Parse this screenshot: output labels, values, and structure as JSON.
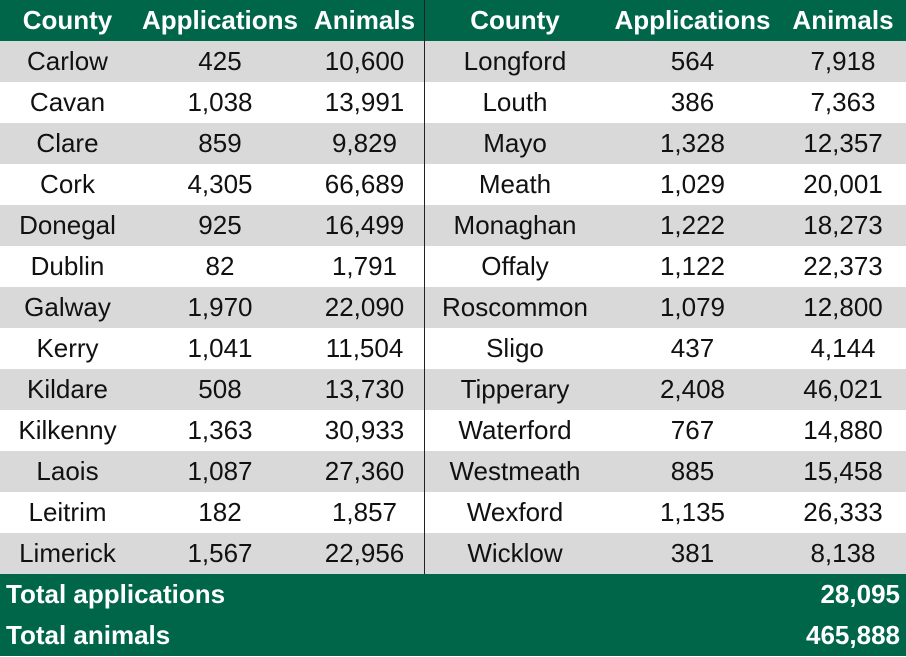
{
  "headers": [
    "County",
    "Applications",
    "Animals",
    "County",
    "Applications",
    "Animals"
  ],
  "colors": {
    "header_bg": "#00664a",
    "alt_row": "#d9d9d9"
  },
  "rows": [
    {
      "left": [
        "Carlow",
        "425",
        "10,600"
      ],
      "right": [
        "Longford",
        "564",
        "7,918"
      ]
    },
    {
      "left": [
        "Cavan",
        "1,038",
        "13,991"
      ],
      "right": [
        "Louth",
        "386",
        "7,363"
      ]
    },
    {
      "left": [
        "Clare",
        "859",
        "9,829"
      ],
      "right": [
        "Mayo",
        "1,328",
        "12,357"
      ]
    },
    {
      "left": [
        "Cork",
        "4,305",
        "66,689"
      ],
      "right": [
        "Meath",
        "1,029",
        "20,001"
      ]
    },
    {
      "left": [
        "Donegal",
        "925",
        "16,499"
      ],
      "right": [
        "Monaghan",
        "1,222",
        "18,273"
      ]
    },
    {
      "left": [
        "Dublin",
        "82",
        "1,791"
      ],
      "right": [
        "Offaly",
        "1,122",
        "22,373"
      ]
    },
    {
      "left": [
        "Galway",
        "1,970",
        "22,090"
      ],
      "right": [
        "Roscommon",
        "1,079",
        "12,800"
      ]
    },
    {
      "left": [
        "Kerry",
        "1,041",
        "11,504"
      ],
      "right": [
        "Sligo",
        "437",
        "4,144"
      ]
    },
    {
      "left": [
        "Kildare",
        "508",
        "13,730"
      ],
      "right": [
        "Tipperary",
        "2,408",
        "46,021"
      ]
    },
    {
      "left": [
        "Kilkenny",
        "1,363",
        "30,933"
      ],
      "right": [
        "Waterford",
        "767",
        "14,880"
      ]
    },
    {
      "left": [
        "Laois",
        "1,087",
        "27,360"
      ],
      "right": [
        "Westmeath",
        "885",
        "15,458"
      ]
    },
    {
      "left": [
        "Leitrim",
        "182",
        "1,857"
      ],
      "right": [
        "Wexford",
        "1,135",
        "26,333"
      ]
    },
    {
      "left": [
        "Limerick",
        "1,567",
        "22,956"
      ],
      "right": [
        "Wicklow",
        "381",
        "8,138"
      ]
    }
  ],
  "totals": [
    {
      "label": "Total applications",
      "value": "28,095"
    },
    {
      "label": "Total animals",
      "value": "465,888"
    }
  ]
}
